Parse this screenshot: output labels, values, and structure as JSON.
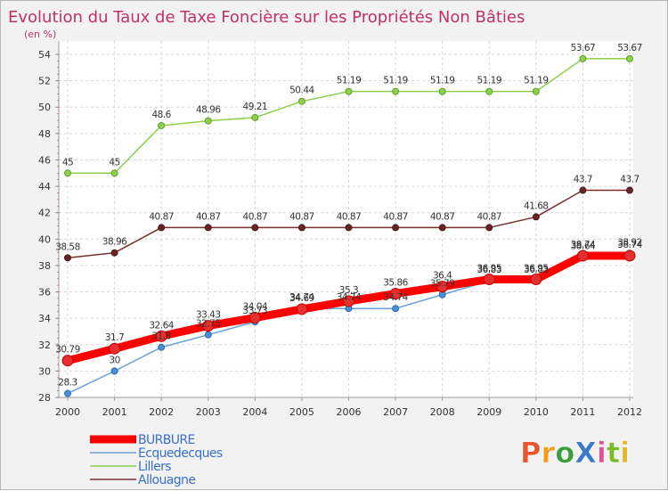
{
  "title": "Evolution du Taux de Taxe Foncière sur les Propriétés Non Bâties",
  "subtitle": "(en %)",
  "logo": {
    "text": "ProXiti",
    "colors": [
      "#e8552d",
      "#f29a1d",
      "#3a9f3a",
      "#3a79c9",
      "#e34f9c",
      "#7cbb2a",
      "#e8b32d"
    ]
  },
  "chart_data": {
    "type": "line",
    "x": [
      "2000",
      "2001",
      "2002",
      "2003",
      "2004",
      "2005",
      "2006",
      "2007",
      "2008",
      "2009",
      "2010",
      "2011",
      "2012"
    ],
    "ylim": [
      28,
      54
    ],
    "yticks": [
      28,
      30,
      32,
      34,
      36,
      38,
      40,
      42,
      44,
      46,
      48,
      50,
      52,
      54
    ],
    "grid": true,
    "legend_position": "bottom-left",
    "series": [
      {
        "name": "Lillers",
        "color": "#8ed04c",
        "values": [
          45,
          45,
          48.6,
          48.96,
          49.21,
          50.44,
          51.19,
          51.19,
          51.19,
          51.19,
          51.19,
          53.67,
          53.67
        ],
        "labels": [
          "45",
          "45",
          "48.6",
          "48.96",
          "49.21",
          "50.44",
          "51.19",
          "51.19",
          "51.19",
          "51.19",
          "51.19",
          "53.67",
          "53.67"
        ]
      },
      {
        "name": "Allouagne",
        "color": "#7a2f2f",
        "values": [
          38.58,
          38.96,
          40.87,
          40.87,
          40.87,
          40.87,
          40.87,
          40.87,
          40.87,
          40.87,
          41.68,
          43.7,
          43.7
        ],
        "labels": [
          "38.58",
          "38.96",
          "40.87",
          "40.87",
          "40.87",
          "40.87",
          "40.87",
          "40.87",
          "40.87",
          "40.87",
          "41.68",
          "43.7",
          "43.7"
        ]
      },
      {
        "name": "Ecquedecques",
        "color": "#6aa0d8",
        "values": [
          28.3,
          30,
          31.8,
          32.75,
          33.73,
          34.74,
          34.74,
          34.74,
          35.79,
          36.83,
          36.83,
          38.64,
          38.92
        ],
        "labels": [
          "28.3",
          "30",
          "31.8",
          "32.75",
          "33.73",
          "34.74",
          "34.74",
          "34.74",
          "35.79",
          "36.83",
          "36.83",
          "38.64",
          "38.92"
        ]
      },
      {
        "name": "BURBURE",
        "color": "#ff0000",
        "values": [
          30.79,
          31.7,
          32.64,
          33.43,
          34.04,
          34.69,
          35.3,
          35.86,
          36.4,
          36.95,
          36.95,
          38.74,
          38.74
        ],
        "labels": [
          "30.79",
          "31.7",
          "32.64",
          "33.43",
          "34.04",
          "34.69",
          "35.3",
          "35.86",
          "36.4",
          "36.95",
          "36.95",
          "38.74",
          "38.74"
        ]
      }
    ],
    "legend": [
      "BURBURE",
      "Ecquedecques",
      "Lillers",
      "Allouagne"
    ]
  }
}
